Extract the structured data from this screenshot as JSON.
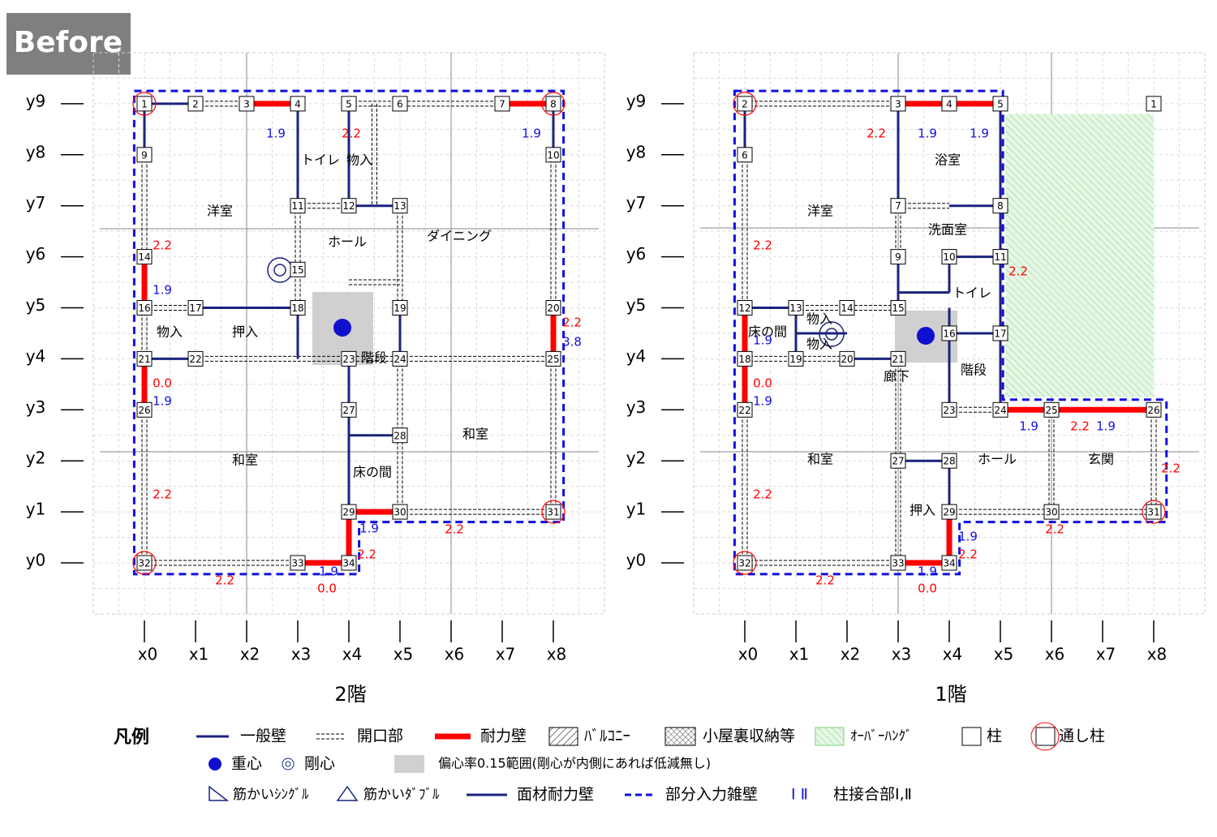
{
  "badge": "Before",
  "plans": [
    {
      "title": "2階",
      "x_axis": [
        "x0",
        "x1",
        "x2",
        "x3",
        "x4",
        "x5",
        "x6",
        "x7",
        "x8"
      ],
      "y_axis": [
        "y0",
        "y1",
        "y2",
        "y3",
        "y4",
        "y5",
        "y6",
        "y7",
        "y8",
        "y9"
      ],
      "columns": [
        "1",
        "2",
        "3",
        "4",
        "5",
        "6",
        "7",
        "8",
        "9",
        "10",
        "11",
        "12",
        "13",
        "14",
        "15",
        "16",
        "17",
        "18",
        "19",
        "20",
        "21",
        "22",
        "23",
        "24",
        "25",
        "26",
        "27",
        "28",
        "29",
        "30",
        "31",
        "32",
        "33",
        "34"
      ],
      "rooms": [
        "洋室",
        "トイレ",
        "物入",
        "ホール",
        "ダイニング",
        "物入",
        "押入",
        "階段",
        "和室",
        "和室",
        "床の間"
      ],
      "wall_values": [
        {
          "text": "1.9",
          "color": "blue"
        },
        {
          "text": "2.2",
          "color": "red"
        },
        {
          "text": "1.9",
          "color": "blue"
        },
        {
          "text": "2.2",
          "color": "red"
        },
        {
          "text": "1.9",
          "color": "blue"
        },
        {
          "text": "2.2",
          "color": "red"
        },
        {
          "text": "3.8",
          "color": "blue"
        },
        {
          "text": "0.0",
          "color": "red"
        },
        {
          "text": "1.9",
          "color": "blue"
        },
        {
          "text": "2.2",
          "color": "red"
        },
        {
          "text": "1.9",
          "color": "blue"
        },
        {
          "text": "2.2",
          "color": "red"
        },
        {
          "text": "2.2",
          "color": "red"
        },
        {
          "text": "1.9",
          "color": "blue"
        },
        {
          "text": "2.2",
          "color": "red"
        },
        {
          "text": "0.0",
          "color": "red"
        }
      ]
    },
    {
      "title": "1階",
      "x_axis": [
        "x0",
        "x1",
        "x2",
        "x3",
        "x4",
        "x5",
        "x6",
        "x7",
        "x8"
      ],
      "y_axis": [
        "y0",
        "y1",
        "y2",
        "y3",
        "y4",
        "y5",
        "y6",
        "y7",
        "y8",
        "y9"
      ],
      "columns": [
        "1",
        "2",
        "3",
        "4",
        "5",
        "6",
        "7",
        "8",
        "9",
        "10",
        "11",
        "12",
        "13",
        "14",
        "15",
        "16",
        "17",
        "18",
        "19",
        "20",
        "21",
        "22",
        "23",
        "24",
        "25",
        "26",
        "27",
        "28",
        "29",
        "30",
        "31",
        "32",
        "33",
        "34"
      ],
      "rooms": [
        "浴室",
        "洋室",
        "洗面室",
        "トイレ",
        "物入",
        "床の間",
        "物入",
        "階段",
        "廊下",
        "和室",
        "ホール",
        "玄関",
        "押入"
      ],
      "wall_values": [
        {
          "text": "2.2",
          "color": "red"
        },
        {
          "text": "1.9",
          "color": "blue"
        },
        {
          "text": "1.9",
          "color": "blue"
        },
        {
          "text": "2.2",
          "color": "red"
        },
        {
          "text": "2.2",
          "color": "red"
        },
        {
          "text": "1.9",
          "color": "blue"
        },
        {
          "text": "0.0",
          "color": "red"
        },
        {
          "text": "1.9",
          "color": "blue"
        },
        {
          "text": "1.9",
          "color": "blue"
        },
        {
          "text": "2.2",
          "color": "red"
        },
        {
          "text": "1.9",
          "color": "blue"
        },
        {
          "text": "2.2",
          "color": "red"
        },
        {
          "text": "2.2",
          "color": "red"
        },
        {
          "text": "1.9",
          "color": "blue"
        },
        {
          "text": "2.2",
          "color": "red"
        },
        {
          "text": "2.2",
          "color": "red"
        },
        {
          "text": "1.9",
          "color": "blue"
        },
        {
          "text": "2.2",
          "color": "red"
        },
        {
          "text": "0.0",
          "color": "red"
        }
      ]
    }
  ],
  "legend": {
    "title": "凡例",
    "items": [
      "一般壁",
      "開口部",
      "耐力壁",
      "ﾊﾞﾙｺﾆｰ",
      "小屋裏収納等",
      "ｵｰﾊﾞｰﾊﾝｸﾞ",
      "柱",
      "通し柱",
      "重心",
      "剛心",
      "偏心率0.15範囲(剛心が内側にあれば低減無し)",
      "筋かいｼﾝｸﾞﾙ",
      "筋かいﾀﾞﾌﾞﾙ",
      "面材耐力壁",
      "部分入力雑壁",
      "Ⅰ Ⅱ",
      "柱接合部Ⅰ,Ⅱ"
    ]
  }
}
